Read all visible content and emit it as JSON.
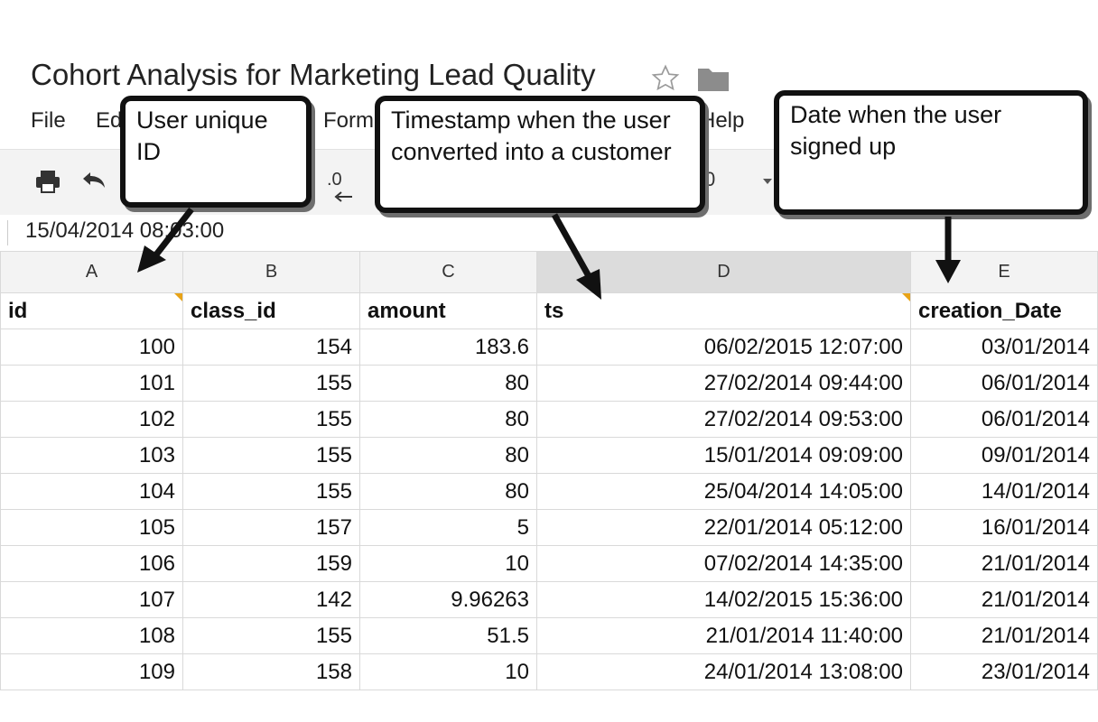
{
  "title": "Cohort Analysis for Marketing Lead Quality",
  "menu": [
    "File",
    "Ed",
    "Form",
    "Help"
  ],
  "toolbar": {
    "decimal_button": ".0",
    "partial_value": "0"
  },
  "formula_bar": {
    "value": "15/04/2014 08:03:00"
  },
  "columns": [
    "A",
    "B",
    "C",
    "D",
    "E"
  ],
  "selected_column": "D",
  "header_row": [
    "id",
    "class_id",
    "amount",
    "ts",
    "creation_Date"
  ],
  "rows": [
    [
      "100",
      "154",
      "183.6",
      "06/02/2015 12:07:00",
      "03/01/2014"
    ],
    [
      "101",
      "155",
      "80",
      "27/02/2014 09:44:00",
      "06/01/2014"
    ],
    [
      "102",
      "155",
      "80",
      "27/02/2014 09:53:00",
      "06/01/2014"
    ],
    [
      "103",
      "155",
      "80",
      "15/01/2014 09:09:00",
      "09/01/2014"
    ],
    [
      "104",
      "155",
      "80",
      "25/04/2014 14:05:00",
      "14/01/2014"
    ],
    [
      "105",
      "157",
      "5",
      "22/01/2014 05:12:00",
      "16/01/2014"
    ],
    [
      "106",
      "159",
      "10",
      "07/02/2014 14:35:00",
      "21/01/2014"
    ],
    [
      "107",
      "142",
      "9.96263",
      "14/02/2015 15:36:00",
      "21/01/2014"
    ],
    [
      "108",
      "155",
      "51.5",
      "21/01/2014 11:40:00",
      "21/01/2014"
    ],
    [
      "109",
      "158",
      "10",
      "24/01/2014 13:08:00",
      "23/01/2014"
    ]
  ],
  "callouts": {
    "user_id": "User unique ID",
    "timestamp": "Timestamp when the user converted into a customer",
    "signup": "Date when the user signed up"
  },
  "colors": {
    "note_marker": "#e8a317",
    "selected_header": "#dcdcdc",
    "grid_line": "#d9d9d9"
  },
  "icons": [
    "star-icon",
    "folder-icon",
    "print-icon",
    "undo-icon",
    "decrease-decimal-icon",
    "dropdown-arrow-icon"
  ]
}
